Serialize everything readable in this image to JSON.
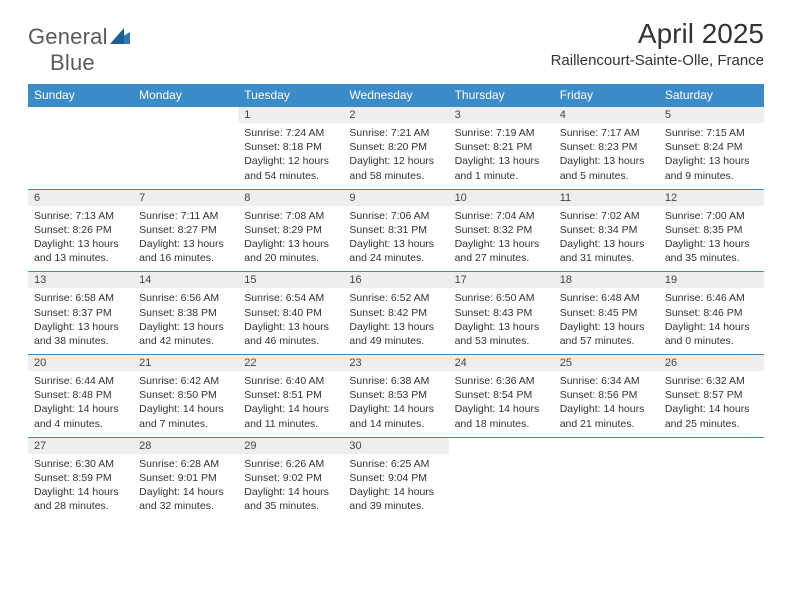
{
  "brand": {
    "part1": "General",
    "part2": "Blue"
  },
  "title": "April 2025",
  "location": "Raillencourt-Sainte-Olle, France",
  "colors": {
    "header_bg": "#3b8bc8",
    "header_text": "#ffffff",
    "daynum_bg": "#eeeeee",
    "border": "#3b8bc8",
    "body_text": "#333333",
    "logo_gray": "#5a5a5a",
    "logo_blue": "#2f77b5"
  },
  "weekdays": [
    "Sunday",
    "Monday",
    "Tuesday",
    "Wednesday",
    "Thursday",
    "Friday",
    "Saturday"
  ],
  "weeks": [
    [
      null,
      null,
      {
        "n": "1",
        "sr": "Sunrise: 7:24 AM",
        "ss": "Sunset: 8:18 PM",
        "dl": "Daylight: 12 hours and 54 minutes."
      },
      {
        "n": "2",
        "sr": "Sunrise: 7:21 AM",
        "ss": "Sunset: 8:20 PM",
        "dl": "Daylight: 12 hours and 58 minutes."
      },
      {
        "n": "3",
        "sr": "Sunrise: 7:19 AM",
        "ss": "Sunset: 8:21 PM",
        "dl": "Daylight: 13 hours and 1 minute."
      },
      {
        "n": "4",
        "sr": "Sunrise: 7:17 AM",
        "ss": "Sunset: 8:23 PM",
        "dl": "Daylight: 13 hours and 5 minutes."
      },
      {
        "n": "5",
        "sr": "Sunrise: 7:15 AM",
        "ss": "Sunset: 8:24 PM",
        "dl": "Daylight: 13 hours and 9 minutes."
      }
    ],
    [
      {
        "n": "6",
        "sr": "Sunrise: 7:13 AM",
        "ss": "Sunset: 8:26 PM",
        "dl": "Daylight: 13 hours and 13 minutes."
      },
      {
        "n": "7",
        "sr": "Sunrise: 7:11 AM",
        "ss": "Sunset: 8:27 PM",
        "dl": "Daylight: 13 hours and 16 minutes."
      },
      {
        "n": "8",
        "sr": "Sunrise: 7:08 AM",
        "ss": "Sunset: 8:29 PM",
        "dl": "Daylight: 13 hours and 20 minutes."
      },
      {
        "n": "9",
        "sr": "Sunrise: 7:06 AM",
        "ss": "Sunset: 8:31 PM",
        "dl": "Daylight: 13 hours and 24 minutes."
      },
      {
        "n": "10",
        "sr": "Sunrise: 7:04 AM",
        "ss": "Sunset: 8:32 PM",
        "dl": "Daylight: 13 hours and 27 minutes."
      },
      {
        "n": "11",
        "sr": "Sunrise: 7:02 AM",
        "ss": "Sunset: 8:34 PM",
        "dl": "Daylight: 13 hours and 31 minutes."
      },
      {
        "n": "12",
        "sr": "Sunrise: 7:00 AM",
        "ss": "Sunset: 8:35 PM",
        "dl": "Daylight: 13 hours and 35 minutes."
      }
    ],
    [
      {
        "n": "13",
        "sr": "Sunrise: 6:58 AM",
        "ss": "Sunset: 8:37 PM",
        "dl": "Daylight: 13 hours and 38 minutes."
      },
      {
        "n": "14",
        "sr": "Sunrise: 6:56 AM",
        "ss": "Sunset: 8:38 PM",
        "dl": "Daylight: 13 hours and 42 minutes."
      },
      {
        "n": "15",
        "sr": "Sunrise: 6:54 AM",
        "ss": "Sunset: 8:40 PM",
        "dl": "Daylight: 13 hours and 46 minutes."
      },
      {
        "n": "16",
        "sr": "Sunrise: 6:52 AM",
        "ss": "Sunset: 8:42 PM",
        "dl": "Daylight: 13 hours and 49 minutes."
      },
      {
        "n": "17",
        "sr": "Sunrise: 6:50 AM",
        "ss": "Sunset: 8:43 PM",
        "dl": "Daylight: 13 hours and 53 minutes."
      },
      {
        "n": "18",
        "sr": "Sunrise: 6:48 AM",
        "ss": "Sunset: 8:45 PM",
        "dl": "Daylight: 13 hours and 57 minutes."
      },
      {
        "n": "19",
        "sr": "Sunrise: 6:46 AM",
        "ss": "Sunset: 8:46 PM",
        "dl": "Daylight: 14 hours and 0 minutes."
      }
    ],
    [
      {
        "n": "20",
        "sr": "Sunrise: 6:44 AM",
        "ss": "Sunset: 8:48 PM",
        "dl": "Daylight: 14 hours and 4 minutes."
      },
      {
        "n": "21",
        "sr": "Sunrise: 6:42 AM",
        "ss": "Sunset: 8:50 PM",
        "dl": "Daylight: 14 hours and 7 minutes."
      },
      {
        "n": "22",
        "sr": "Sunrise: 6:40 AM",
        "ss": "Sunset: 8:51 PM",
        "dl": "Daylight: 14 hours and 11 minutes."
      },
      {
        "n": "23",
        "sr": "Sunrise: 6:38 AM",
        "ss": "Sunset: 8:53 PM",
        "dl": "Daylight: 14 hours and 14 minutes."
      },
      {
        "n": "24",
        "sr": "Sunrise: 6:36 AM",
        "ss": "Sunset: 8:54 PM",
        "dl": "Daylight: 14 hours and 18 minutes."
      },
      {
        "n": "25",
        "sr": "Sunrise: 6:34 AM",
        "ss": "Sunset: 8:56 PM",
        "dl": "Daylight: 14 hours and 21 minutes."
      },
      {
        "n": "26",
        "sr": "Sunrise: 6:32 AM",
        "ss": "Sunset: 8:57 PM",
        "dl": "Daylight: 14 hours and 25 minutes."
      }
    ],
    [
      {
        "n": "27",
        "sr": "Sunrise: 6:30 AM",
        "ss": "Sunset: 8:59 PM",
        "dl": "Daylight: 14 hours and 28 minutes."
      },
      {
        "n": "28",
        "sr": "Sunrise: 6:28 AM",
        "ss": "Sunset: 9:01 PM",
        "dl": "Daylight: 14 hours and 32 minutes."
      },
      {
        "n": "29",
        "sr": "Sunrise: 6:26 AM",
        "ss": "Sunset: 9:02 PM",
        "dl": "Daylight: 14 hours and 35 minutes."
      },
      {
        "n": "30",
        "sr": "Sunrise: 6:25 AM",
        "ss": "Sunset: 9:04 PM",
        "dl": "Daylight: 14 hours and 39 minutes."
      },
      null,
      null,
      null
    ]
  ]
}
